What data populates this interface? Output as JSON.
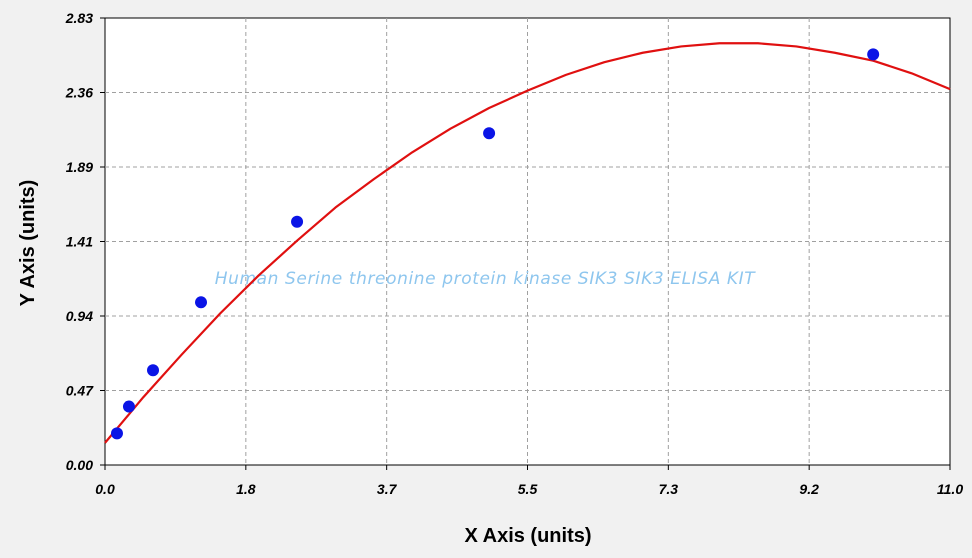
{
  "chart_data": {
    "type": "scatter",
    "xlabel": "X Axis (units)",
    "ylabel": "Y Axis (units)",
    "xlim": [
      0.0,
      11.0
    ],
    "ylim": [
      0.0,
      2.83
    ],
    "x_ticks": [
      "0.0",
      "1.8",
      "3.7",
      "5.5",
      "7.3",
      "9.2",
      "11.0"
    ],
    "y_ticks": [
      "0.00",
      "0.47",
      "0.94",
      "1.41",
      "1.89",
      "2.36",
      "2.83"
    ],
    "grid": true,
    "annotation": "Human Serine threonine protein kinase SIK3 SIK3 ELISA KIT",
    "series": [
      {
        "kind": "points",
        "color": "#0a14e6",
        "x": [
          0.156,
          0.312,
          0.625,
          1.25,
          2.5,
          5.0,
          10.0
        ],
        "y": [
          0.2,
          0.37,
          0.6,
          1.03,
          1.54,
          2.1,
          2.6
        ]
      },
      {
        "kind": "fit-curve",
        "color": "#e01010",
        "x": [
          0.0,
          0.5,
          1.0,
          1.5,
          2.0,
          2.5,
          3.0,
          3.5,
          4.0,
          4.5,
          5.0,
          5.5,
          6.0,
          6.5,
          7.0,
          7.5,
          8.0,
          8.5,
          9.0,
          9.5,
          10.0,
          10.5,
          11.0
        ],
        "y": [
          0.14,
          0.43,
          0.7,
          0.96,
          1.2,
          1.42,
          1.63,
          1.81,
          1.98,
          2.13,
          2.26,
          2.37,
          2.47,
          2.55,
          2.61,
          2.65,
          2.67,
          2.67,
          2.65,
          2.61,
          2.56,
          2.48,
          2.38
        ]
      }
    ]
  }
}
